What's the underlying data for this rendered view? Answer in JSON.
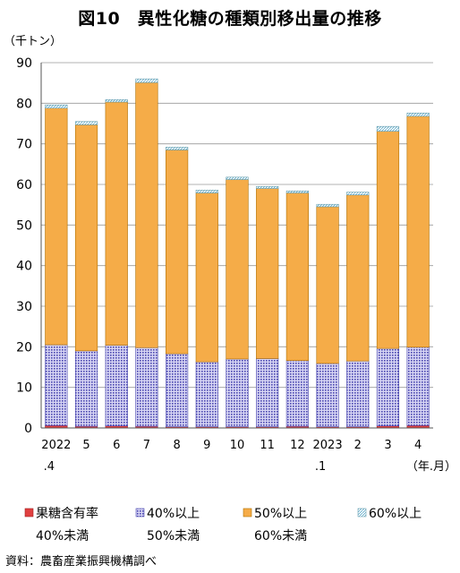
{
  "title": "図10　異性化糖の種類別移出量の推移",
  "source": "資料：農畜産業振興機構調べ",
  "chart_data": {
    "type": "bar",
    "stacked": true,
    "unit_label": "（千トン）",
    "x_unit_label": "（年.月）",
    "categories": [
      "2022.4",
      "5",
      "6",
      "7",
      "8",
      "9",
      "10",
      "11",
      "12",
      "2023.1",
      "2",
      "3",
      "4"
    ],
    "category_ticks": [
      [
        "2022",
        ".4"
      ],
      [
        "5",
        ""
      ],
      [
        "6",
        ""
      ],
      [
        "7",
        ""
      ],
      [
        "8",
        ""
      ],
      [
        "9",
        ""
      ],
      [
        "10",
        ""
      ],
      [
        "11",
        ""
      ],
      [
        "12",
        ""
      ],
      [
        "2023",
        ".1"
      ],
      [
        "2",
        ""
      ],
      [
        "3",
        ""
      ],
      [
        "4",
        ""
      ]
    ],
    "ylim": [
      0,
      90
    ],
    "yticks": [
      0,
      10,
      20,
      30,
      40,
      50,
      60,
      70,
      80,
      90
    ],
    "grid": true,
    "legend_position": "bottom",
    "series": [
      {
        "name": "果糖含有率40%未満",
        "legend_lines": [
          "果糖含有率",
          "40%未満"
        ],
        "color": "#e04040",
        "values": [
          0.6,
          0.4,
          0.5,
          0.4,
          0.3,
          0.3,
          0.3,
          0.3,
          0.4,
          0.3,
          0.3,
          0.5,
          0.6
        ]
      },
      {
        "name": "40%以上50%未満",
        "legend_lines": [
          "40%以上",
          "50%未満"
        ],
        "color": "#7b78cc",
        "values": [
          19.9,
          18.6,
          19.9,
          19.4,
          18.0,
          16.0,
          16.7,
          16.8,
          16.2,
          15.6,
          16.2,
          19.1,
          19.3
        ]
      },
      {
        "name": "50%以上60%未満",
        "legend_lines": [
          "50%以上",
          "60%未満"
        ],
        "color": "#f5ac48",
        "values": [
          58.3,
          55.7,
          59.9,
          65.3,
          50.2,
          41.6,
          44.2,
          41.9,
          41.3,
          38.6,
          40.9,
          53.5,
          56.9
        ]
      },
      {
        "name": "60%以上",
        "legend_lines": [
          "60%以上",
          ""
        ],
        "color": "#c8ecec",
        "values": [
          0.8,
          0.8,
          0.6,
          0.9,
          0.7,
          0.7,
          0.6,
          0.5,
          0.5,
          0.6,
          0.7,
          1.2,
          0.8
        ]
      }
    ]
  }
}
